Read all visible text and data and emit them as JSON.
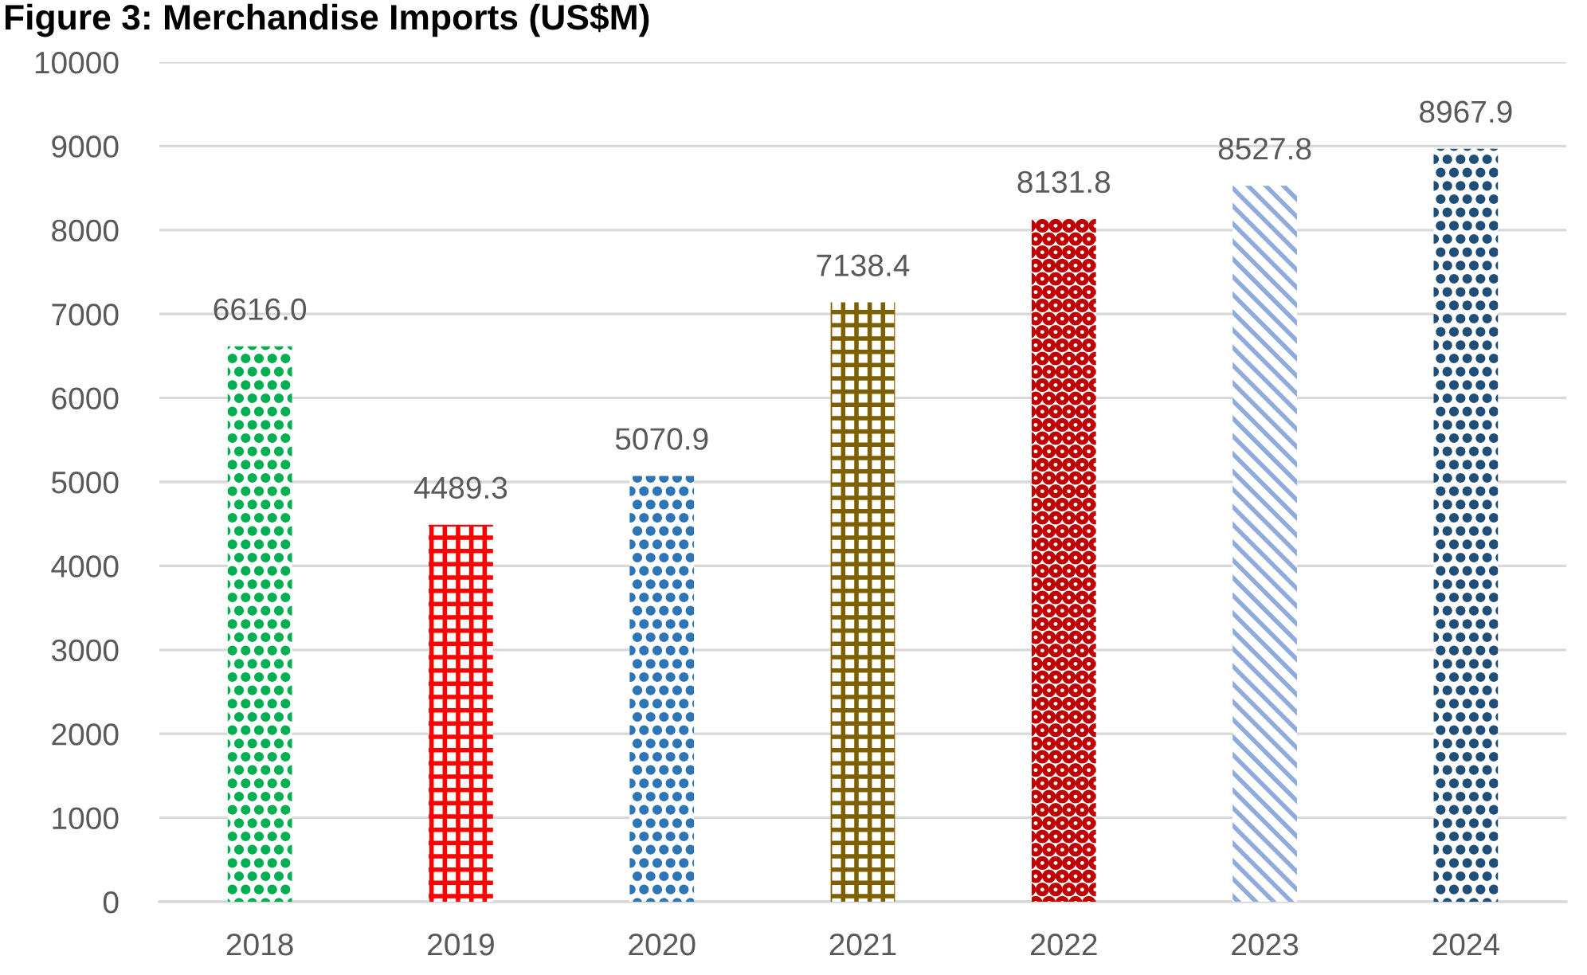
{
  "chart_data": {
    "type": "bar",
    "title": "Figure 3: Merchandise Imports (US$M)",
    "categories": [
      "2018",
      "2019",
      "2020",
      "2021",
      "2022",
      "2023",
      "2024"
    ],
    "values": [
      6616.0,
      4489.3,
      5070.9,
      7138.4,
      8131.8,
      8527.8,
      8967.9
    ],
    "value_labels": [
      "6616.0",
      "4489.3",
      "5070.9",
      "7138.4",
      "8131.8",
      "8527.8",
      "8967.9"
    ],
    "colors": [
      "#00b050",
      "#ff0000",
      "#2e75b6",
      "#7f6000",
      "#c00000",
      "#8faadc",
      "#1f4e79"
    ],
    "ylim": [
      0,
      10000
    ],
    "yticks": [
      0,
      1000,
      2000,
      3000,
      4000,
      5000,
      6000,
      7000,
      8000,
      9000,
      10000
    ],
    "grid": "y"
  }
}
